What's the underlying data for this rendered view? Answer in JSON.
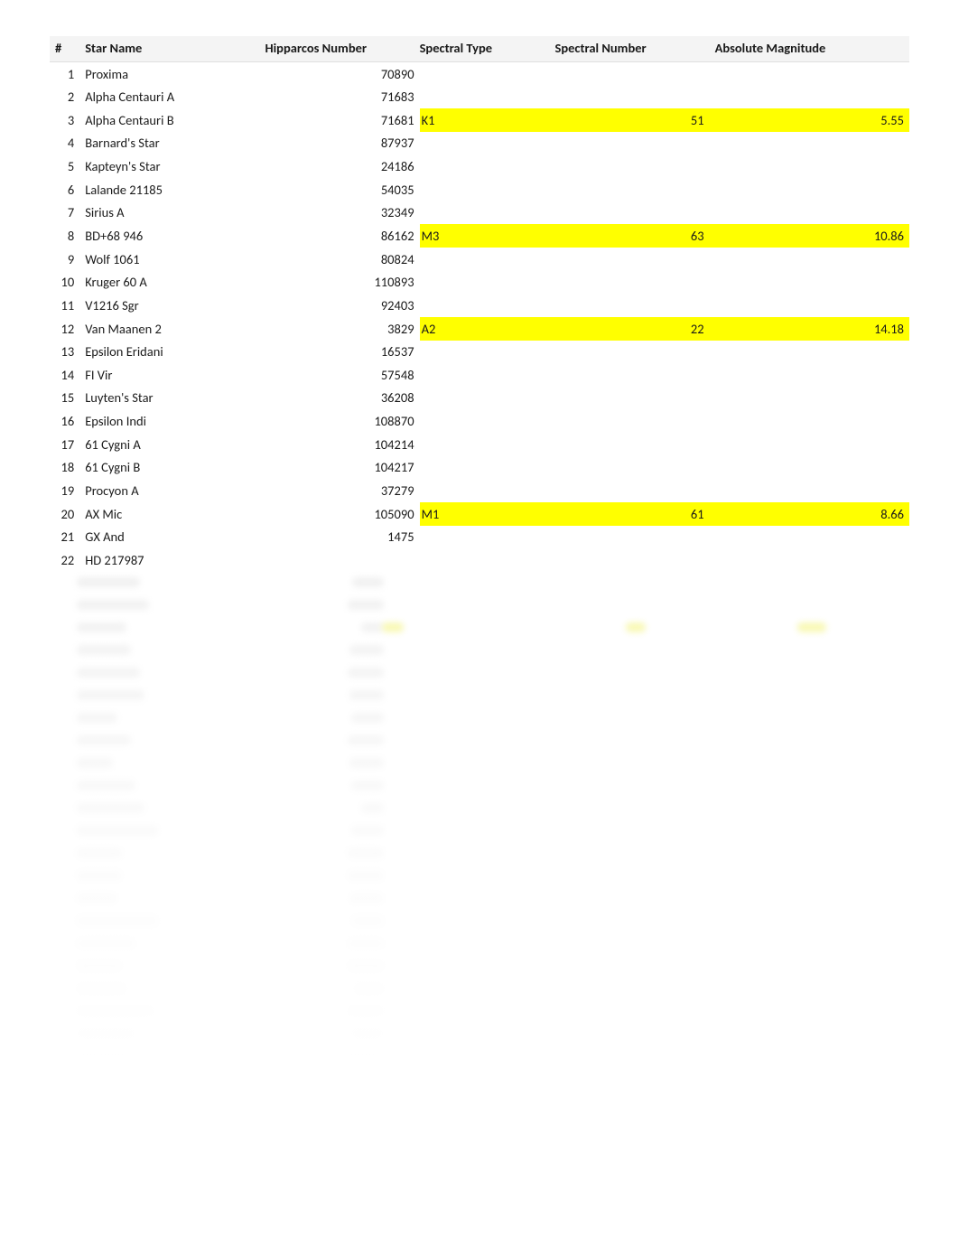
{
  "columns": {
    "num": "#",
    "name": "Star Name",
    "hip": "Hipparcos Number",
    "stype": "Spectral Type",
    "snum": "Spectral Number",
    "amag": "Absolute Magnitude"
  },
  "highlight_color": "#ffff00",
  "text_color": "#1a1a1a",
  "header_bg": "#f4f4f4",
  "rows": [
    {
      "n": "1",
      "name": "Proxima",
      "hip": "70890",
      "stype": "",
      "snum": "",
      "amag": "",
      "hl": false
    },
    {
      "n": "2",
      "name": "Alpha Centauri A",
      "hip": "71683",
      "stype": "",
      "snum": "",
      "amag": "",
      "hl": false
    },
    {
      "n": "3",
      "name": "Alpha Centauri B",
      "hip": "71681",
      "stype": "K1",
      "snum": "51",
      "amag": "5.55",
      "hl": true
    },
    {
      "n": "4",
      "name": "Barnard's Star",
      "hip": "87937",
      "stype": "",
      "snum": "",
      "amag": "",
      "hl": false
    },
    {
      "n": "5",
      "name": "Kapteyn's Star",
      "hip": "24186",
      "stype": "",
      "snum": "",
      "amag": "",
      "hl": false
    },
    {
      "n": "6",
      "name": "Lalande 21185",
      "hip": "54035",
      "stype": "",
      "snum": "",
      "amag": "",
      "hl": false
    },
    {
      "n": "7",
      "name": "Sirius A",
      "hip": "32349",
      "stype": "",
      "snum": "",
      "amag": "",
      "hl": false
    },
    {
      "n": "8",
      "name": "BD+68 946",
      "hip": "86162",
      "stype": "M3",
      "snum": "63",
      "amag": "10.86",
      "hl": true
    },
    {
      "n": "9",
      "name": "Wolf 1061",
      "hip": "80824",
      "stype": "",
      "snum": "",
      "amag": "",
      "hl": false
    },
    {
      "n": "10",
      "name": "Kruger 60 A",
      "hip": "110893",
      "stype": "",
      "snum": "",
      "amag": "",
      "hl": false
    },
    {
      "n": "11",
      "name": "V1216 Sgr",
      "hip": "92403",
      "stype": "",
      "snum": "",
      "amag": "",
      "hl": false
    },
    {
      "n": "12",
      "name": "Van Maanen 2",
      "hip": "3829",
      "stype": "A2",
      "snum": "22",
      "amag": "14.18",
      "hl": true
    },
    {
      "n": "13",
      "name": "Epsilon Eridani",
      "hip": "16537",
      "stype": "",
      "snum": "",
      "amag": "",
      "hl": false
    },
    {
      "n": "14",
      "name": "FI Vir",
      "hip": "57548",
      "stype": "",
      "snum": "",
      "amag": "",
      "hl": false
    },
    {
      "n": "15",
      "name": "Luyten's Star",
      "hip": "36208",
      "stype": "",
      "snum": "",
      "amag": "",
      "hl": false
    },
    {
      "n": "16",
      "name": "Epsilon Indi",
      "hip": "108870",
      "stype": "",
      "snum": "",
      "amag": "",
      "hl": false
    },
    {
      "n": "17",
      "name": "61 Cygni A",
      "hip": "104214",
      "stype": "",
      "snum": "",
      "amag": "",
      "hl": false
    },
    {
      "n": "18",
      "name": "61 Cygni B",
      "hip": "104217",
      "stype": "",
      "snum": "",
      "amag": "",
      "hl": false
    },
    {
      "n": "19",
      "name": "Procyon A",
      "hip": "37279",
      "stype": "",
      "snum": "",
      "amag": "",
      "hl": false
    },
    {
      "n": "20",
      "name": "AX Mic",
      "hip": "105090",
      "stype": "M1",
      "snum": "61",
      "amag": "8.66",
      "hl": true
    },
    {
      "n": "21",
      "name": "GX And",
      "hip": "1475",
      "stype": "",
      "snum": "",
      "amag": "",
      "hl": false
    },
    {
      "n": "22",
      "name": "HD 217987",
      "hip": "",
      "stype": "",
      "snum": "",
      "amag": "",
      "hl": false
    }
  ],
  "blurred_rows": [
    {
      "nw": 70,
      "hw": 35,
      "hl": false
    },
    {
      "nw": 80,
      "hw": 40,
      "hl": false
    },
    {
      "nw": 55,
      "hw": 25,
      "hl": true
    },
    {
      "nw": 60,
      "hw": 38,
      "hl": false
    },
    {
      "nw": 70,
      "hw": 40,
      "hl": false
    },
    {
      "nw": 75,
      "hw": 38,
      "hl": false
    },
    {
      "nw": 45,
      "hw": 36,
      "hl": false
    },
    {
      "nw": 60,
      "hw": 40,
      "hl": false
    },
    {
      "nw": 40,
      "hw": 38,
      "hl": false
    },
    {
      "nw": 65,
      "hw": 36,
      "hl": false
    },
    {
      "nw": 75,
      "hw": 25,
      "hl": false
    },
    {
      "nw": 90,
      "hw": 36,
      "hl": false
    },
    {
      "nw": 50,
      "hw": 40,
      "hl": false
    },
    {
      "nw": 50,
      "hw": 40,
      "hl": false
    },
    {
      "nw": 45,
      "hw": 38,
      "hl": false
    },
    {
      "nw": 90,
      "hw": 35,
      "hl": false
    },
    {
      "nw": 65,
      "hw": 40,
      "hl": false
    },
    {
      "nw": 50,
      "hw": 40,
      "hl": false
    },
    {
      "nw": 55,
      "hw": 32,
      "hl": false
    },
    {
      "nw": 85,
      "hw": 40,
      "hl": false
    },
    {
      "nw": 65,
      "hw": 36,
      "hl": false
    },
    {
      "nw": 65,
      "hw": 45,
      "hl": false
    }
  ]
}
